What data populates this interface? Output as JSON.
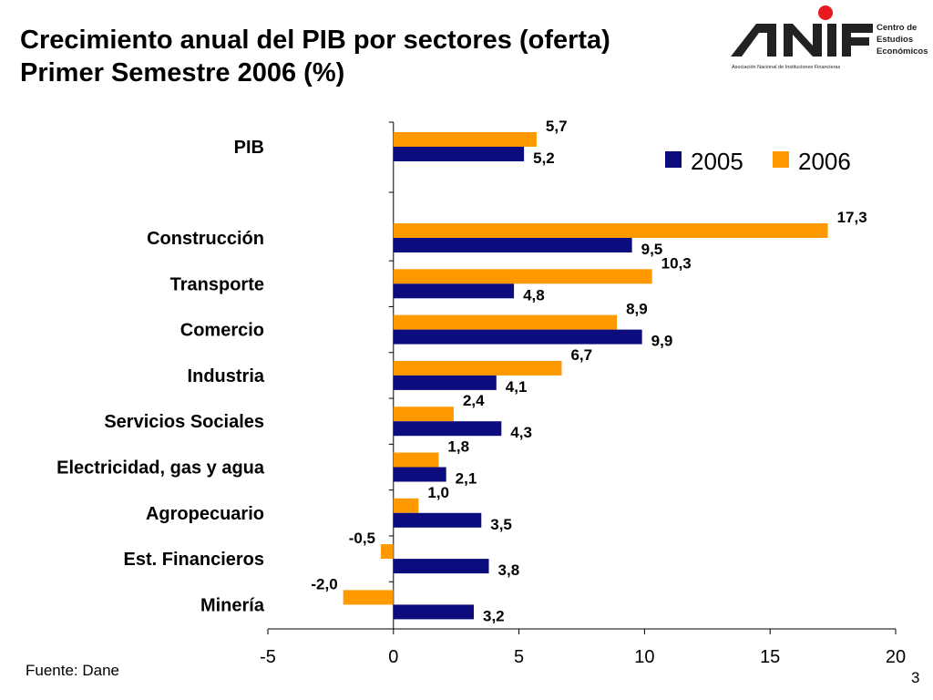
{
  "header": {
    "title_line1": "Crecimiento anual del PIB por sectores (oferta)",
    "title_line2": "Primer Semestre 2006 (%)"
  },
  "logo": {
    "line1": "Centro de",
    "line2": "Estudios",
    "line3": "Económicos",
    "subtitle": "Asociación Nacional de Instituciones Financieras",
    "accent_color": "#e8191f"
  },
  "chart_data": {
    "type": "bar",
    "orientation": "horizontal",
    "title": "",
    "xlabel": "",
    "ylabel": "",
    "categories": [
      "PIB",
      "Construcción",
      "Transporte",
      "Comercio",
      "Industria",
      "Servicios Sociales",
      "Electricidad, gas y agua",
      "Agropecuario",
      "Est. Financieros",
      "Minería"
    ],
    "series": [
      {
        "name": "2005",
        "color": "#0c0c7e",
        "values": [
          5.2,
          9.5,
          4.8,
          9.9,
          4.1,
          4.3,
          2.1,
          3.5,
          3.8,
          3.2
        ],
        "labels": [
          "5,2",
          "9,5",
          "4,8",
          "9,9",
          "4,1",
          "4,3",
          "2,1",
          "3,5",
          "3,8",
          "3,2"
        ]
      },
      {
        "name": "2006",
        "color": "#ff9900",
        "values": [
          5.7,
          17.3,
          10.3,
          8.9,
          6.7,
          2.4,
          1.8,
          1.0,
          -0.5,
          -2.0
        ],
        "labels": [
          "5,7",
          "17,3",
          "10,3",
          "8,9",
          "6,7",
          "2,4",
          "1,8",
          "1,0",
          "-0,5",
          "-2,0"
        ]
      }
    ],
    "xlim": [
      -5,
      20
    ],
    "xticks": [
      -5,
      0,
      5,
      10,
      15,
      20
    ],
    "xtick_labels": [
      "-5",
      "0",
      "5",
      "10",
      "15",
      "20"
    ],
    "grid": false,
    "legend_position": "top-right"
  },
  "footer": {
    "source": "Fuente: Dane",
    "page_number": "3"
  }
}
